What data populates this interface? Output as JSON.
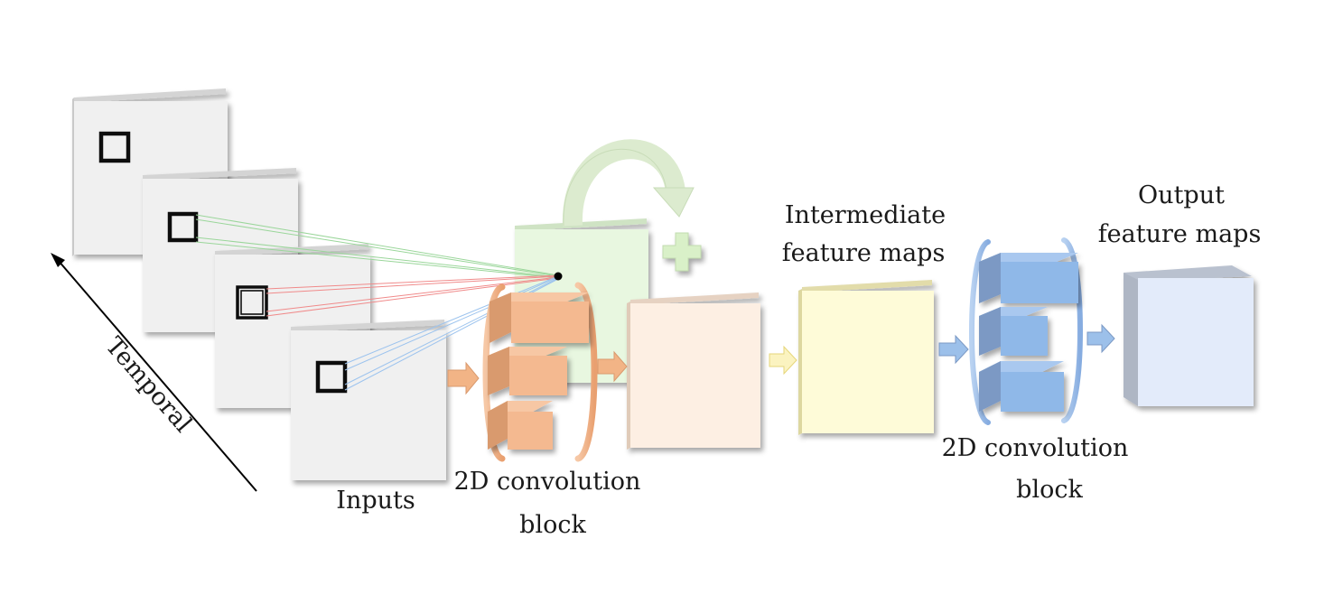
{
  "labels": {
    "temporal": "Temporal",
    "inputs": "Inputs",
    "conv_block_1_line1": "2D convolution",
    "conv_block_1_line2": "block",
    "intermediate_line1": "Intermediate",
    "intermediate_line2": "feature maps",
    "conv_block_2_line1": "2D convolution",
    "conv_block_2_line2": "block",
    "output_line1": "Output",
    "output_line2": "feature maps"
  },
  "colors": {
    "input_frame": "#f0f0f0",
    "conv_block_1": "#f4b990",
    "conv_block_2": "#8fb8e8",
    "pre_intermediate_map": "#fdefe3",
    "intermediate_map": "#fefbd8",
    "output_map": "#e3ebfa",
    "residual_map": "#e8f7e0",
    "residual_arrow": "#dcebcf",
    "plus_sign": "#d9f0c8",
    "link_green": "#9ad69a",
    "link_red": "#f08a8a",
    "link_blue": "#9cc3ee"
  },
  "icons": {
    "temporal_axis": "long-arrow-icon",
    "flow_arrow": "block-arrow-icon",
    "residual_connection": "curved-arrow-icon",
    "addition": "plus-icon",
    "brackets": "bracket-icon"
  }
}
